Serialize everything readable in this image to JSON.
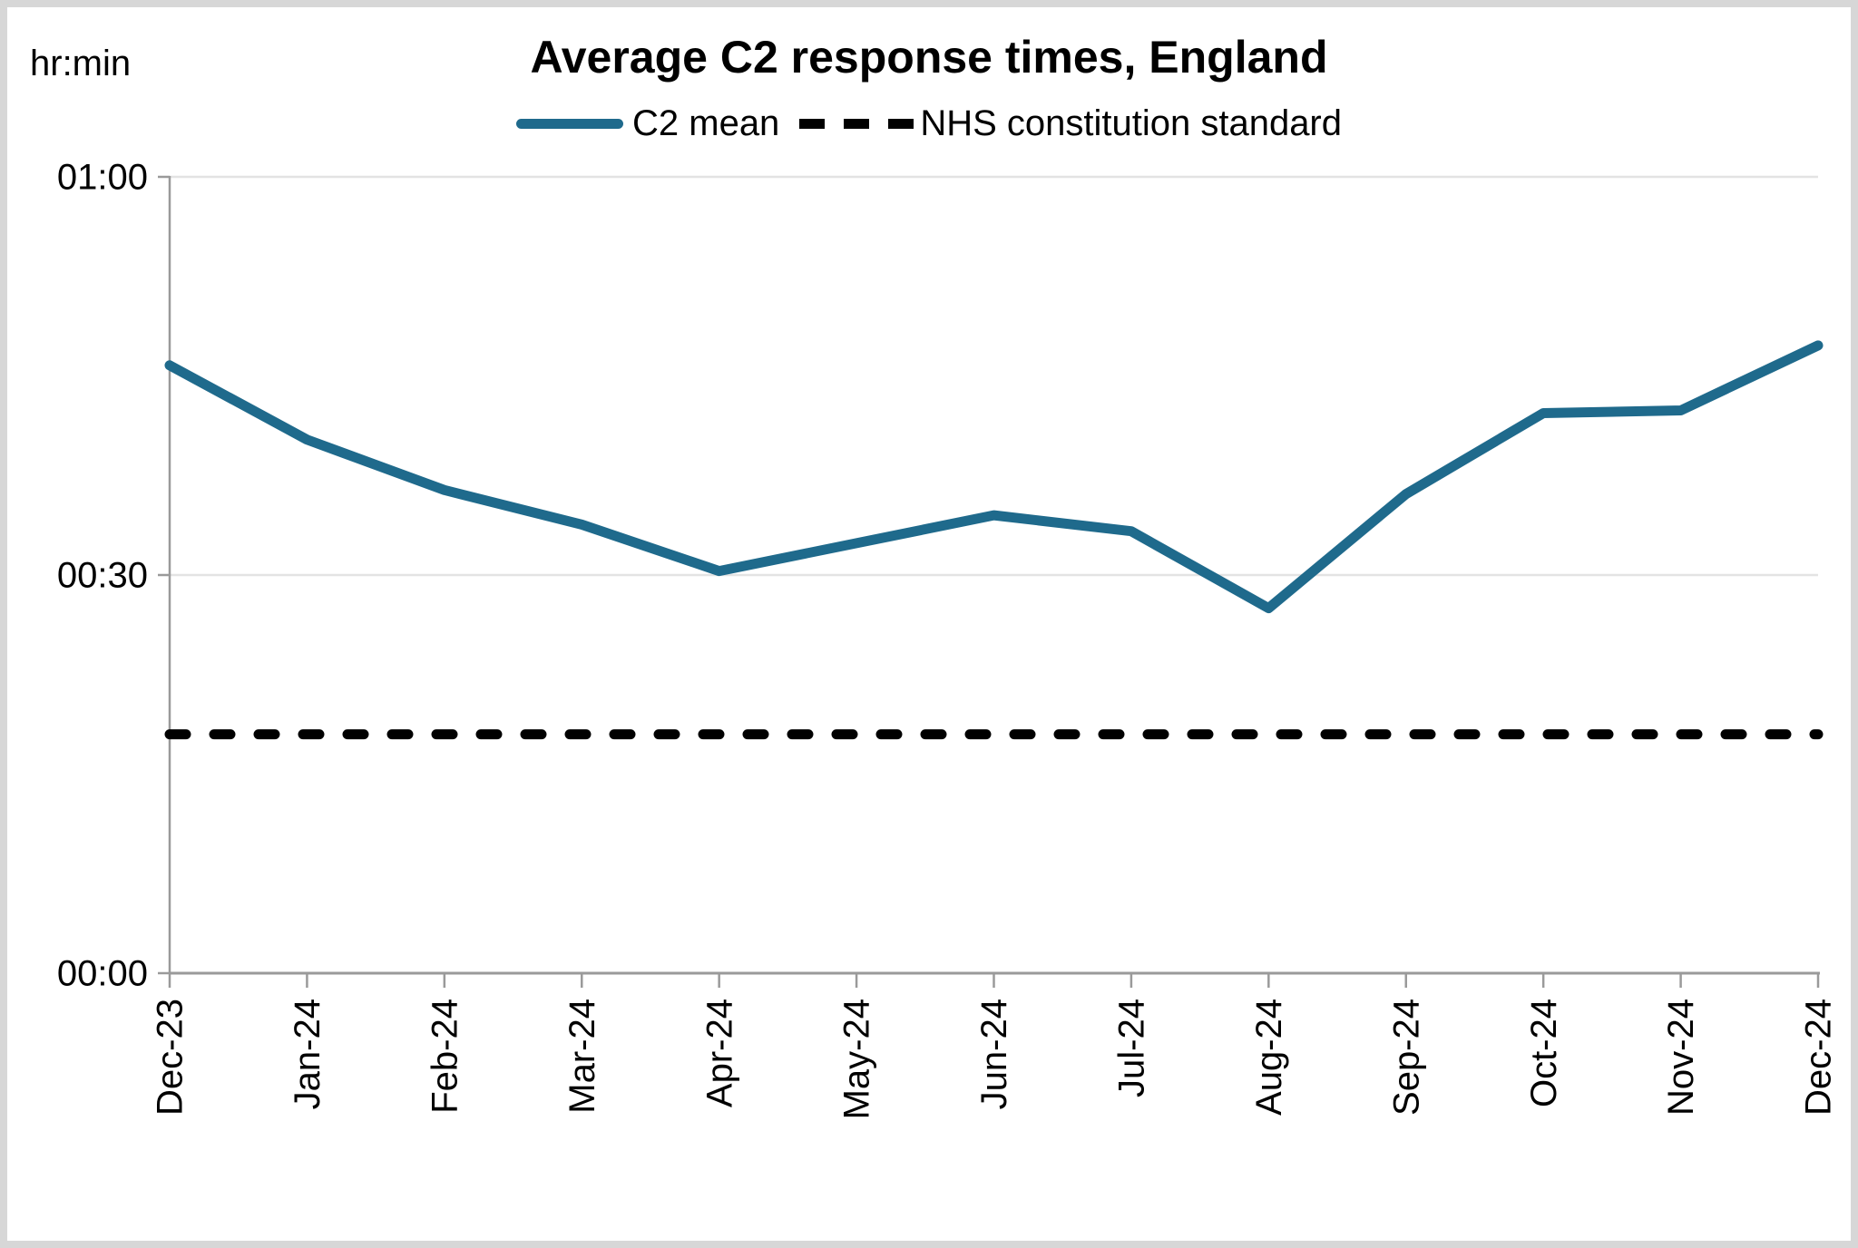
{
  "header": {
    "yaxis_unit_label": "hr:min",
    "title": "Average C2 response times, England"
  },
  "legend": {
    "items": [
      {
        "label": "C2 mean",
        "style": "solid",
        "color": "#1F6A8C"
      },
      {
        "label": "NHS constitution standard",
        "style": "dashed",
        "color": "#000000"
      }
    ]
  },
  "chart_data": {
    "type": "line",
    "title": "Average C2 response times, England",
    "unit": "hr:min",
    "categories": [
      "Dec-23",
      "Jan-24",
      "Feb-24",
      "Mar-24",
      "Apr-24",
      "May-24",
      "Jun-24",
      "Jul-24",
      "Aug-24",
      "Sep-24",
      "Oct-24",
      "Nov-24",
      "Dec-24"
    ],
    "series": [
      {
        "name": "C2 mean",
        "style": "solid",
        "color": "#1F6A8C",
        "values_minutes": [
          45.8,
          40.2,
          36.4,
          33.8,
          30.3,
          32.4,
          34.5,
          33.3,
          27.5,
          36.1,
          42.2,
          42.4,
          47.3
        ]
      },
      {
        "name": "NHS constitution standard",
        "style": "dashed",
        "color": "#000000",
        "constant_minutes": 18
      }
    ],
    "y_ticks": [
      {
        "minutes": 0,
        "label": "00:00"
      },
      {
        "minutes": 30,
        "label": "00:30"
      },
      {
        "minutes": 60,
        "label": "01:00"
      }
    ],
    "ylim_minutes": [
      0,
      60
    ],
    "grid": "horizontal",
    "legend_position": "top"
  }
}
